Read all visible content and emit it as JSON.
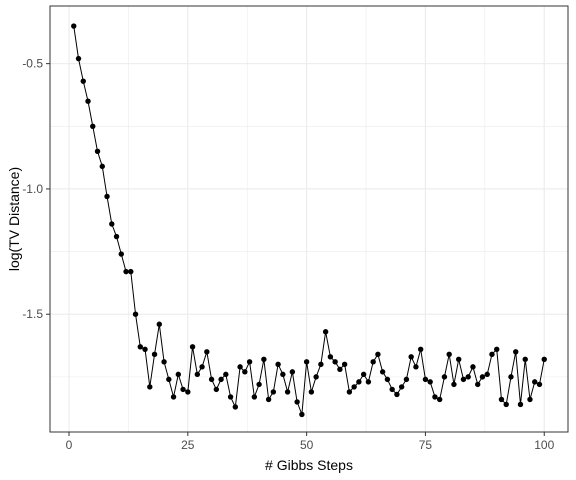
{
  "chart_data": {
    "type": "line",
    "title": "",
    "xlabel": "# Gibbs Steps",
    "ylabel": "log(TV Distance)",
    "xlim": [
      -4,
      105
    ],
    "ylim": [
      -1.97,
      -0.27
    ],
    "x_ticks": [
      0,
      25,
      50,
      75,
      100
    ],
    "x_tick_labels": [
      "0",
      "25",
      "50",
      "75",
      "100"
    ],
    "y_ticks": [
      -0.5,
      -1.0,
      -1.5
    ],
    "y_tick_labels": [
      "-0.5",
      "-1.0",
      "-1.5"
    ],
    "grid": true,
    "legend": "none",
    "colors": {
      "line": "#000000",
      "point": "#000000",
      "grid": "#ebebeb",
      "panel_border": "#333333"
    },
    "series": [
      {
        "x": [
          1,
          2,
          3,
          4,
          5,
          6,
          7,
          8,
          9,
          10,
          11,
          12,
          13,
          14,
          15,
          16,
          17,
          18,
          19,
          20,
          21,
          22,
          23,
          24,
          25,
          26,
          27,
          28,
          29,
          30,
          31,
          32,
          33,
          34,
          35,
          36,
          37,
          38,
          39,
          40,
          41,
          42,
          43,
          44,
          45,
          46,
          47,
          48,
          49,
          50,
          51,
          52,
          53,
          54,
          55,
          56,
          57,
          58,
          59,
          60,
          61,
          62,
          63,
          64,
          65,
          66,
          67,
          68,
          69,
          70,
          71,
          72,
          73,
          74,
          75,
          76,
          77,
          78,
          79,
          80,
          81,
          82,
          83,
          84,
          85,
          86,
          87,
          88,
          89,
          90,
          91,
          92,
          93,
          94,
          95,
          96,
          97,
          98,
          99,
          100
        ],
        "y": [
          -0.35,
          -0.48,
          -0.57,
          -0.65,
          -0.75,
          -0.85,
          -0.91,
          -1.03,
          -1.14,
          -1.19,
          -1.26,
          -1.33,
          -1.33,
          -1.5,
          -1.63,
          -1.64,
          -1.79,
          -1.66,
          -1.54,
          -1.69,
          -1.76,
          -1.83,
          -1.74,
          -1.8,
          -1.81,
          -1.63,
          -1.74,
          -1.71,
          -1.65,
          -1.76,
          -1.8,
          -1.76,
          -1.74,
          -1.83,
          -1.87,
          -1.71,
          -1.73,
          -1.69,
          -1.83,
          -1.78,
          -1.68,
          -1.84,
          -1.81,
          -1.7,
          -1.74,
          -1.81,
          -1.73,
          -1.85,
          -1.9,
          -1.69,
          -1.81,
          -1.75,
          -1.7,
          -1.57,
          -1.67,
          -1.69,
          -1.72,
          -1.7,
          -1.81,
          -1.79,
          -1.77,
          -1.74,
          -1.77,
          -1.69,
          -1.66,
          -1.73,
          -1.76,
          -1.8,
          -1.82,
          -1.79,
          -1.76,
          -1.67,
          -1.71,
          -1.64,
          -1.76,
          -1.77,
          -1.83,
          -1.84,
          -1.75,
          -1.66,
          -1.78,
          -1.68,
          -1.76,
          -1.75,
          -1.71,
          -1.78,
          -1.75,
          -1.74,
          -1.66,
          -1.64,
          -1.84,
          -1.86,
          -1.75,
          -1.65,
          -1.86,
          -1.68,
          -1.84,
          -1.77,
          -1.78,
          -1.68
        ]
      }
    ]
  }
}
